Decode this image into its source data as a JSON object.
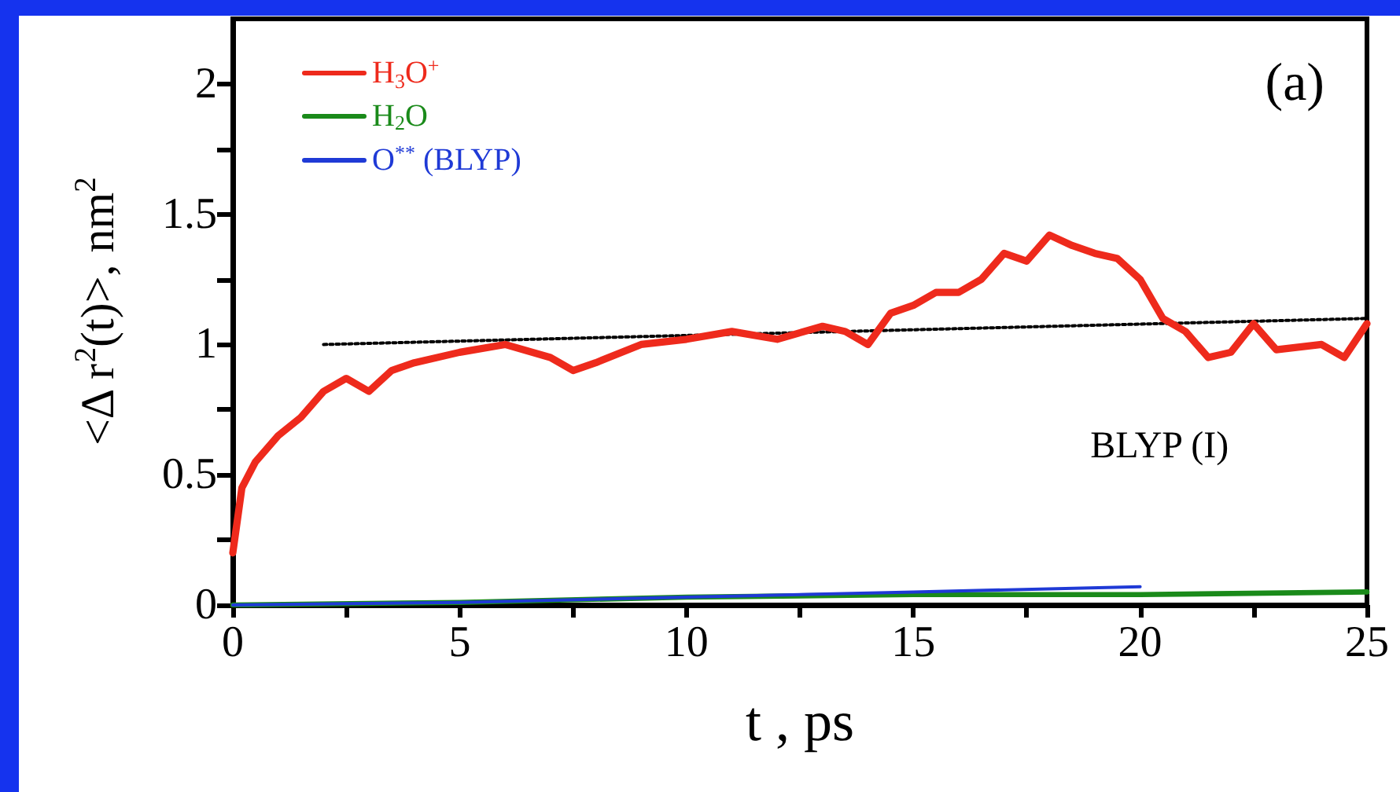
{
  "chart_data": {
    "type": "line",
    "xlabel": "t , ps",
    "ylabel": "<Δ r$^{2}$(t)>, nm$^{2}$",
    "xlim": [
      0,
      25
    ],
    "ylim": [
      0,
      2.25
    ],
    "xticks": [
      0,
      {
        "value": 2.5,
        "label": null
      },
      5,
      {
        "value": 7.5,
        "label": null
      },
      10,
      {
        "value": 12.5,
        "label": null
      },
      15,
      {
        "value": 17.5,
        "label": null
      },
      20,
      {
        "value": 22.5,
        "label": null
      },
      25
    ],
    "yticks": [
      0,
      {
        "value": 0.25,
        "label": null
      },
      0.5,
      {
        "value": 0.75,
        "label": null
      },
      1,
      {
        "value": 1.25,
        "label": null
      },
      1.5,
      {
        "value": 1.75,
        "label": null
      },
      2
    ],
    "grid": false,
    "legend": "top left",
    "marker": "none",
    "annotations": [
      "(a)",
      "BLYP (I)"
    ],
    "series": [
      {
        "name": "H$_{3}$O$^{+}$",
        "color": "#ee2a1c",
        "x": [
          0,
          0.2,
          0.5,
          1,
          1.5,
          2,
          2.5,
          3,
          3.5,
          4,
          5,
          6,
          7,
          7.5,
          8,
          9,
          10,
          11,
          12,
          13,
          13.5,
          14,
          14.5,
          15,
          15.5,
          16,
          16.5,
          17,
          17.5,
          18,
          18.5,
          19,
          19.5,
          20,
          20.5,
          21,
          21.5,
          22,
          22.5,
          23,
          24,
          24.5,
          25
        ],
        "values": [
          0.2,
          0.45,
          0.55,
          0.65,
          0.72,
          0.82,
          0.87,
          0.82,
          0.9,
          0.93,
          0.97,
          1.0,
          0.95,
          0.9,
          0.93,
          1.0,
          1.02,
          1.05,
          1.02,
          1.07,
          1.05,
          1.0,
          1.12,
          1.15,
          1.2,
          1.2,
          1.25,
          1.35,
          1.32,
          1.42,
          1.38,
          1.35,
          1.33,
          1.25,
          1.1,
          1.05,
          0.95,
          0.97,
          1.08,
          0.98,
          1.0,
          0.95,
          1.08
        ]
      },
      {
        "name": "H$_{2}$O",
        "color": "#1a8a1a",
        "x": [
          0,
          5,
          10,
          15,
          20,
          25
        ],
        "values": [
          0,
          0.01,
          0.03,
          0.04,
          0.04,
          0.05
        ]
      },
      {
        "name": "O$^{**}$ (BLYP)",
        "color": "#1f3ad6",
        "x": [
          0,
          5,
          10,
          15,
          20
        ],
        "values": [
          0,
          0.01,
          0.03,
          0.05,
          0.07
        ]
      },
      {
        "type": "line",
        "color": "#000000",
        "line_style": "dotted",
        "x": [
          2,
          25
        ],
        "values": [
          1.0,
          1.1
        ]
      }
    ]
  }
}
